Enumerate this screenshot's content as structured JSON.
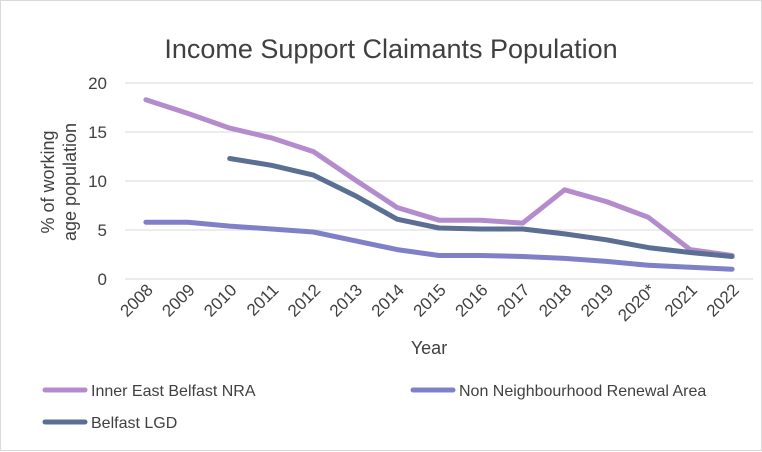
{
  "chart_data": {
    "type": "line",
    "title": "Income Support Claimants Population",
    "xlabel": "Year",
    "ylabel": "% of working age population",
    "ylim": [
      0,
      20
    ],
    "yticks": [
      0,
      5,
      10,
      15,
      20
    ],
    "grid": true,
    "legend_position": "bottom",
    "categories": [
      "2008",
      "2009",
      "2010",
      "2011",
      "2012",
      "2013",
      "2014",
      "2015",
      "2016",
      "2017",
      "2018",
      "2019",
      "2020*",
      "2021",
      "2022"
    ],
    "series": [
      {
        "name": "Inner East Belfast NRA",
        "color": "#b48ccd",
        "values": [
          18.3,
          16.9,
          15.4,
          14.4,
          13.0,
          10.1,
          7.3,
          6.0,
          6.0,
          5.7,
          9.1,
          7.9,
          6.3,
          3.0,
          2.4
        ]
      },
      {
        "name": "Non Neighbourhood Renewal Area",
        "color": "#7f80c8",
        "values": [
          5.8,
          5.8,
          5.4,
          5.1,
          4.8,
          3.9,
          3.0,
          2.4,
          2.4,
          2.3,
          2.1,
          1.8,
          1.4,
          1.2,
          1.0
        ]
      },
      {
        "name": "Belfast LGD",
        "color": "#5b6f92",
        "values": [
          null,
          null,
          12.3,
          11.6,
          10.6,
          8.5,
          6.1,
          5.2,
          5.1,
          5.1,
          4.6,
          4.0,
          3.2,
          2.7,
          2.3
        ]
      }
    ]
  }
}
